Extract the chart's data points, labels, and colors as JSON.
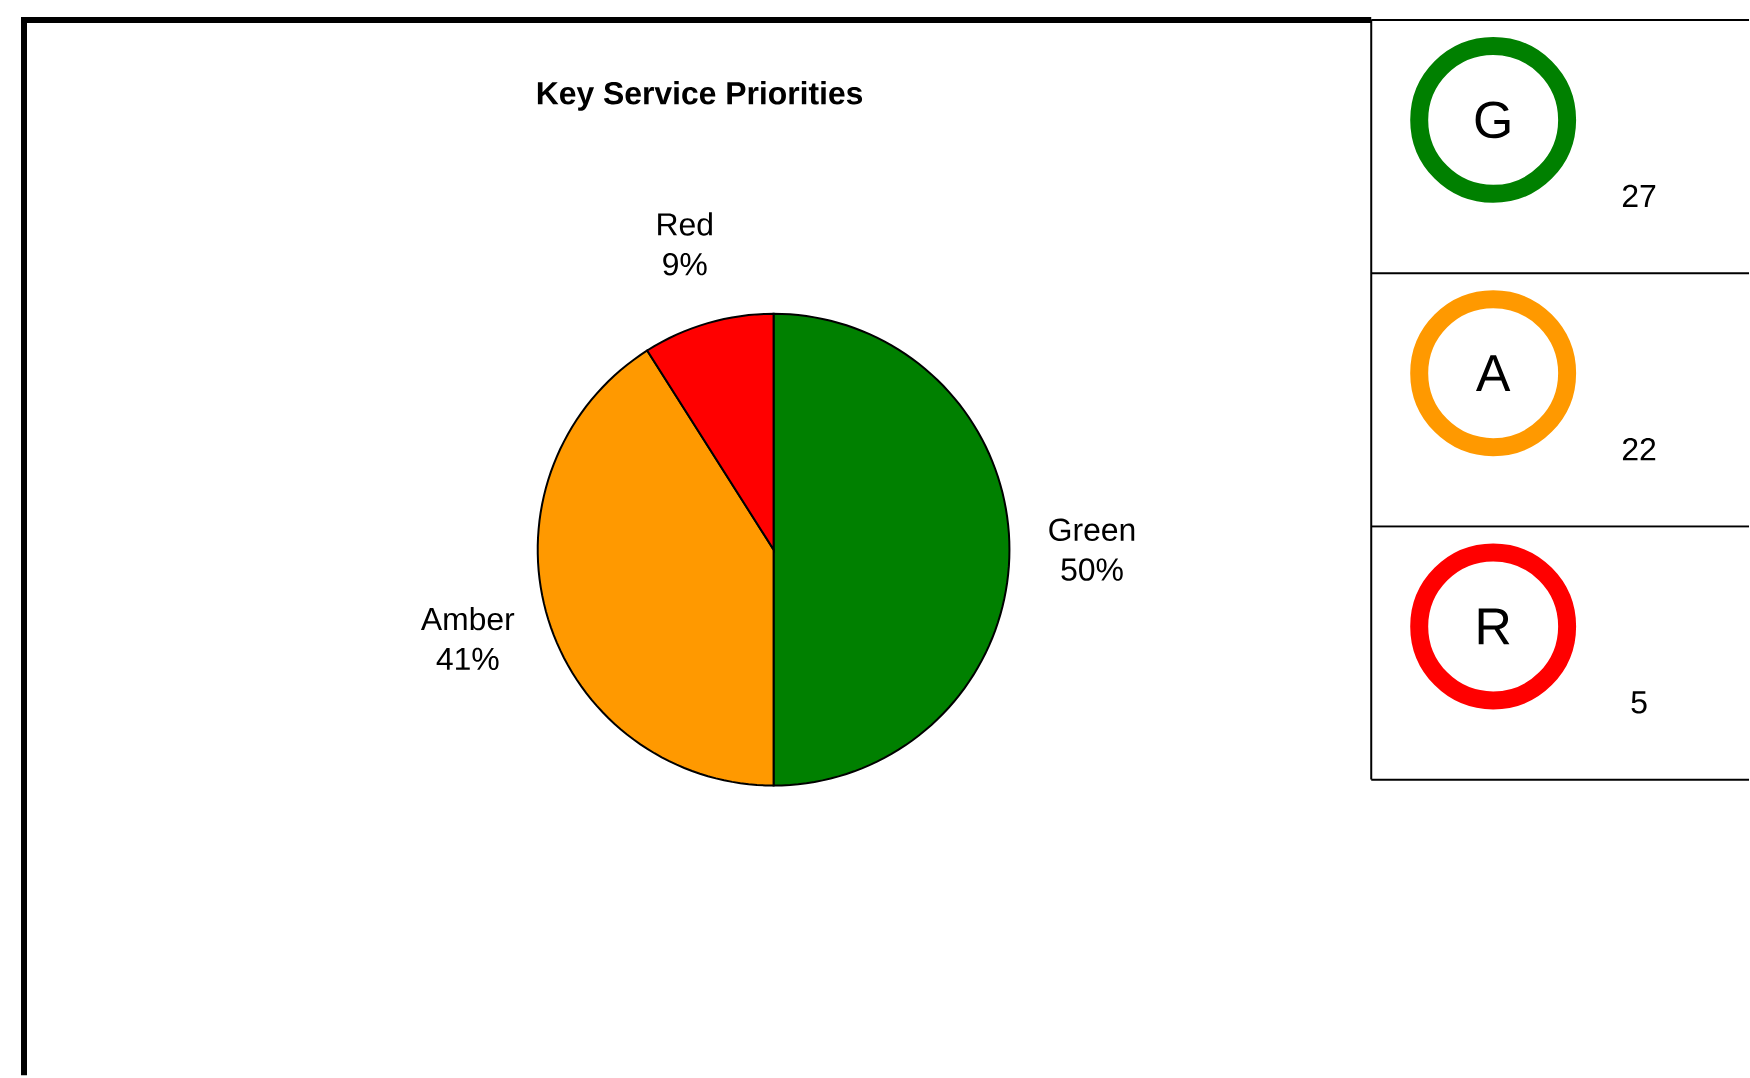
{
  "chart_data": [
    {
      "type": "pie",
      "title": "Key Service Priorities",
      "categories": [
        "Green",
        "Amber",
        "Red"
      ],
      "values": [
        50,
        41,
        9
      ],
      "colors": [
        "#008000",
        "#ff9900",
        "#ff0000"
      ],
      "value_labels": [
        "50%",
        "41%",
        "9%"
      ]
    },
    {
      "type": "other",
      "categories": [
        "G",
        "A",
        "R"
      ],
      "values": [
        27,
        22,
        5
      ],
      "value_labels": [
        "27",
        "22",
        "5"
      ],
      "colors": [
        "#008000",
        "#ff9900",
        "#ff0000"
      ]
    }
  ]
}
